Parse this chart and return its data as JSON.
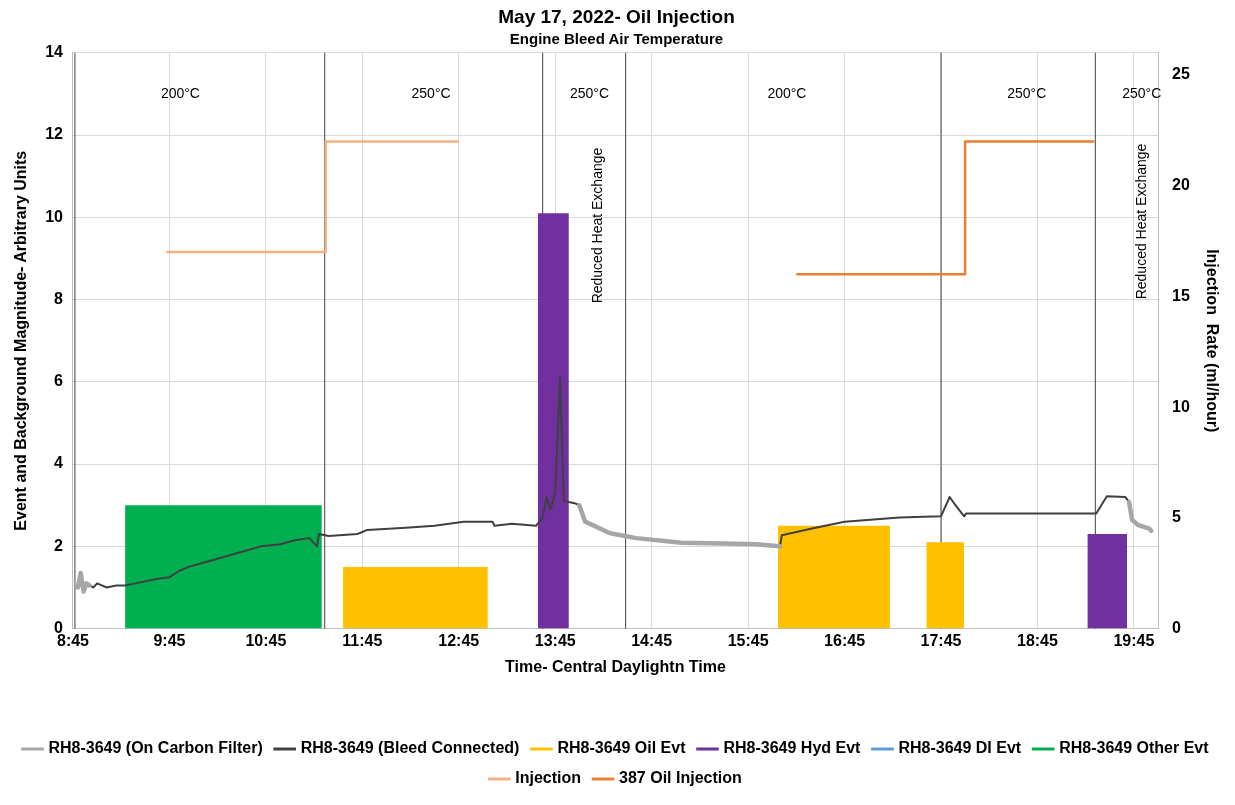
{
  "chart_data": {
    "type": "line",
    "title": "May 17, 2022- Oil Injection",
    "subtitle": "Engine Bleed Air Temperature",
    "xlabel": "Time- Central Daylightn Time",
    "ylabel": "Event and Background Magnitude- Arbitrary Units",
    "y2label": "Injection  Rate (ml/hour)",
    "xlim": [
      8.75,
      20.0
    ],
    "xticks": [
      {
        "value": 8.75,
        "label": "8:45"
      },
      {
        "value": 9.75,
        "label": "9:45"
      },
      {
        "value": 10.75,
        "label": "10:45"
      },
      {
        "value": 11.75,
        "label": "11:45"
      },
      {
        "value": 12.75,
        "label": "12:45"
      },
      {
        "value": 13.75,
        "label": "13:45"
      },
      {
        "value": 14.75,
        "label": "14:45"
      },
      {
        "value": 15.75,
        "label": "15:45"
      },
      {
        "value": 16.75,
        "label": "16:45"
      },
      {
        "value": 17.75,
        "label": "17:45"
      },
      {
        "value": 18.75,
        "label": "18:45"
      },
      {
        "value": 19.75,
        "label": "19:45"
      }
    ],
    "ylim": [
      0,
      14
    ],
    "yticks": [
      0,
      2,
      4,
      6,
      8,
      10,
      12,
      14
    ],
    "y2lim": [
      0,
      26
    ],
    "y2ticks": [
      0,
      5,
      10,
      15,
      20,
      25
    ],
    "grid": true,
    "legend": "bottom",
    "marker": "none",
    "line_style": "solid",
    "series": [
      {
        "name": "RH8-3649 (On Carbon Filter)",
        "type": "line",
        "color": "#a6a6a6",
        "x": [
          8.8,
          8.83,
          8.86,
          8.89,
          8.92,
          null,
          14.0,
          14.06,
          14.32,
          14.59,
          15.06,
          15.5,
          15.84,
          16.08,
          null,
          19.7,
          19.73,
          19.79,
          19.91,
          19.93
        ],
        "values": [
          1.0,
          1.35,
          0.9,
          1.1,
          1.05,
          null,
          3.0,
          2.6,
          2.32,
          2.2,
          2.09,
          2.07,
          2.05,
          2.0,
          null,
          3.08,
          2.65,
          2.52,
          2.43,
          2.38
        ]
      },
      {
        "name": "RH8-3649 (Bleed Connected)",
        "type": "line",
        "color": "#404040",
        "x": [
          8.92,
          8.96,
          9.0,
          9.1,
          9.2,
          9.29,
          9.4,
          9.6,
          9.75,
          9.85,
          9.95,
          10.1,
          10.25,
          10.4,
          10.55,
          10.7,
          10.9,
          11.05,
          11.2,
          11.28,
          11.3,
          11.4,
          11.7,
          11.8,
          12.2,
          12.5,
          12.8,
          13.1,
          13.12,
          13.3,
          13.55,
          13.62,
          13.66,
          13.7,
          13.75,
          13.8,
          13.84,
          13.95,
          14.0,
          null,
          16.08,
          16.1,
          16.4,
          16.75,
          17.32,
          17.75,
          17.84,
          17.9,
          17.99,
          18.01,
          19.36,
          19.47,
          19.66,
          19.7
        ],
        "values": [
          1.05,
          1.0,
          1.1,
          1.0,
          1.05,
          1.05,
          1.1,
          1.2,
          1.25,
          1.4,
          1.5,
          1.6,
          1.7,
          1.8,
          1.9,
          2.0,
          2.05,
          2.15,
          2.2,
          2.0,
          2.3,
          2.25,
          2.3,
          2.4,
          2.45,
          2.5,
          2.6,
          2.6,
          2.5,
          2.55,
          2.5,
          2.7,
          3.2,
          2.9,
          3.3,
          6.1,
          3.1,
          3.05,
          3.0,
          null,
          2.0,
          2.27,
          2.43,
          2.6,
          2.7,
          2.73,
          3.2,
          3.0,
          2.73,
          2.8,
          2.8,
          3.22,
          3.2,
          3.08
        ]
      },
      {
        "name": "RH8-3649 Oil Evt",
        "type": "area",
        "color": "#ffc000",
        "x": [
          11.55,
          11.55,
          13.05,
          13.05,
          16.06,
          16.06,
          17.22,
          17.22,
          17.6,
          17.6,
          17.99,
          17.99
        ],
        "values": [
          0,
          1.5,
          1.5,
          0,
          0,
          2.5,
          2.5,
          0,
          0,
          2.1,
          2.1,
          0
        ]
      },
      {
        "name": "RH8-3649 Hyd Evt",
        "type": "area",
        "color": "#7030a0",
        "x": [
          13.57,
          13.57,
          13.89,
          13.89,
          19.27,
          19.27,
          19.68,
          19.68
        ],
        "values": [
          0,
          10.1,
          10.1,
          0,
          0,
          2.3,
          2.3,
          0
        ]
      },
      {
        "name": "RH8-3649 DI Evt",
        "type": "area",
        "color": "#5b9bd5"
      },
      {
        "name": "RH8-3649 Other Evt",
        "type": "area",
        "color": "#00b050",
        "x": [
          9.29,
          9.29,
          11.33,
          11.33
        ],
        "values": [
          0,
          3,
          3,
          0
        ]
      },
      {
        "name": "Injection",
        "type": "line",
        "axis": "y2",
        "color": "#f4b183",
        "x": [
          9.73,
          11.37,
          11.37,
          12.74
        ],
        "values": [
          17,
          17,
          22,
          22
        ]
      },
      {
        "name": "387 Oil Injection",
        "type": "line",
        "axis": "y2",
        "color": "#ed7d31",
        "x": [
          16.26,
          18.0,
          18.0,
          19.33
        ],
        "values": [
          16,
          16,
          22,
          22
        ]
      }
    ],
    "ref_lines": [
      {
        "axis": "x",
        "value": 8.77,
        "color": "#404040"
      },
      {
        "axis": "x",
        "value": 11.36,
        "color": "#404040"
      },
      {
        "axis": "x",
        "value": 13.62,
        "color": "#404040"
      },
      {
        "axis": "x",
        "value": 14.48,
        "color": "#404040"
      },
      {
        "axis": "x",
        "value": 17.75,
        "color": "#404040"
      },
      {
        "axis": "x",
        "value": 19.35,
        "color": "#404040"
      }
    ],
    "annotations": [
      "200°C",
      "250°C",
      "250°C",
      "200°C",
      "250°C",
      "250°C",
      "Reduced Heat Exchange",
      "Reduced Heat Exchange"
    ]
  }
}
